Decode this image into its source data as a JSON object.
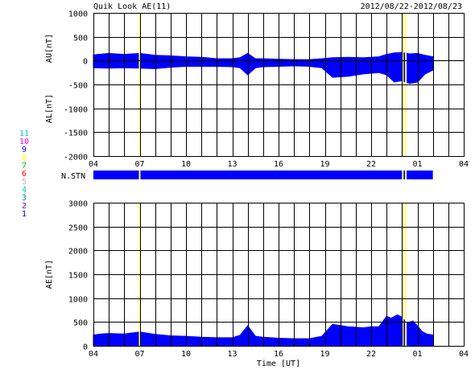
{
  "header": {
    "title": "Quik Look AE(11)",
    "date_range": "2012/08/22-2012/08/23"
  },
  "legend": {
    "items": [
      {
        "label": "11",
        "color": "#00c8c8"
      },
      {
        "label": "10",
        "color": "#ff00ff"
      },
      {
        "label": "9",
        "color": "#0000ff"
      },
      {
        "label": "8",
        "color": "#ffff00"
      },
      {
        "label": "7",
        "color": "#00c800"
      },
      {
        "label": "6",
        "color": "#ff0000"
      },
      {
        "label": "5",
        "color": "#b4b4b4"
      },
      {
        "label": "4",
        "color": "#00c8c8"
      },
      {
        "label": "3",
        "color": "#0088a0"
      },
      {
        "label": "2",
        "color": "#a000a0"
      },
      {
        "label": "1",
        "color": "#0000c0"
      }
    ]
  },
  "colors": {
    "fill": "#0000ff",
    "grid": "#000000",
    "missing": "#ffff80",
    "background": "#ffffff"
  },
  "chart_data": [
    {
      "type": "area",
      "name": "AU/AL panel",
      "ylabel_upper": "AU[nT]",
      "ylabel_lower": "AL[nT]",
      "xlim": [
        4,
        28
      ],
      "ylim": [
        -2000,
        1000
      ],
      "y_ticks": [
        1000,
        500,
        0,
        -500,
        -1000,
        -1500,
        -2000
      ],
      "x_tick_labels": [
        "04",
        "07",
        "10",
        "13",
        "16",
        "19",
        "22",
        "01",
        "04"
      ],
      "x": [
        4,
        5,
        6,
        7,
        8,
        9,
        10,
        11,
        12,
        13,
        13.5,
        14,
        14.5,
        15,
        16,
        17,
        18,
        18.8,
        19.5,
        20.5,
        21.5,
        22.5,
        23,
        23.5,
        24,
        24.5,
        25,
        25.5,
        26
      ],
      "au": [
        120,
        150,
        130,
        150,
        110,
        100,
        80,
        70,
        40,
        40,
        60,
        150,
        40,
        40,
        30,
        20,
        20,
        40,
        60,
        70,
        60,
        80,
        130,
        160,
        170,
        140,
        150,
        110,
        80
      ],
      "al": [
        -150,
        -160,
        -150,
        -160,
        -170,
        -140,
        -120,
        -120,
        -120,
        -130,
        -150,
        -300,
        -150,
        -130,
        -120,
        -110,
        -120,
        -150,
        -350,
        -330,
        -280,
        -250,
        -300,
        -450,
        -420,
        -480,
        -450,
        -280,
        -200
      ],
      "missing_x": [
        7,
        24.05,
        24.25
      ]
    },
    {
      "type": "bar",
      "name": "N.STN",
      "label": "N.STN",
      "xlim": [
        4,
        28
      ],
      "range": [
        4,
        26
      ],
      "missing_x": [
        7,
        24.05,
        24.25
      ]
    },
    {
      "type": "area",
      "name": "AE panel",
      "ylabel": "AE[nT]",
      "xlabel": "Time [UT]",
      "xlim": [
        4,
        28
      ],
      "ylim": [
        0,
        3000
      ],
      "y_ticks": [
        3000,
        2500,
        2000,
        1500,
        1000,
        500,
        0
      ],
      "x_tick_labels": [
        "04",
        "07",
        "10",
        "13",
        "16",
        "19",
        "22",
        "01",
        "04"
      ],
      "x": [
        4,
        4.5,
        5,
        6,
        7,
        8,
        9,
        10,
        11,
        12,
        13,
        13.5,
        14,
        14.5,
        15,
        16,
        17,
        18,
        18.8,
        19.5,
        20.5,
        21.5,
        22,
        22.5,
        23,
        23.3,
        23.7,
        24,
        24.3,
        24.7,
        25,
        25.3,
        25.6,
        26
      ],
      "values": [
        230,
        250,
        260,
        250,
        290,
        240,
        210,
        200,
        180,
        170,
        170,
        220,
        420,
        200,
        180,
        160,
        150,
        150,
        200,
        450,
        400,
        380,
        400,
        400,
        620,
        580,
        650,
        600,
        480,
        520,
        420,
        300,
        250,
        230
      ],
      "missing_x": [
        7,
        24.05,
        24.25
      ]
    }
  ]
}
